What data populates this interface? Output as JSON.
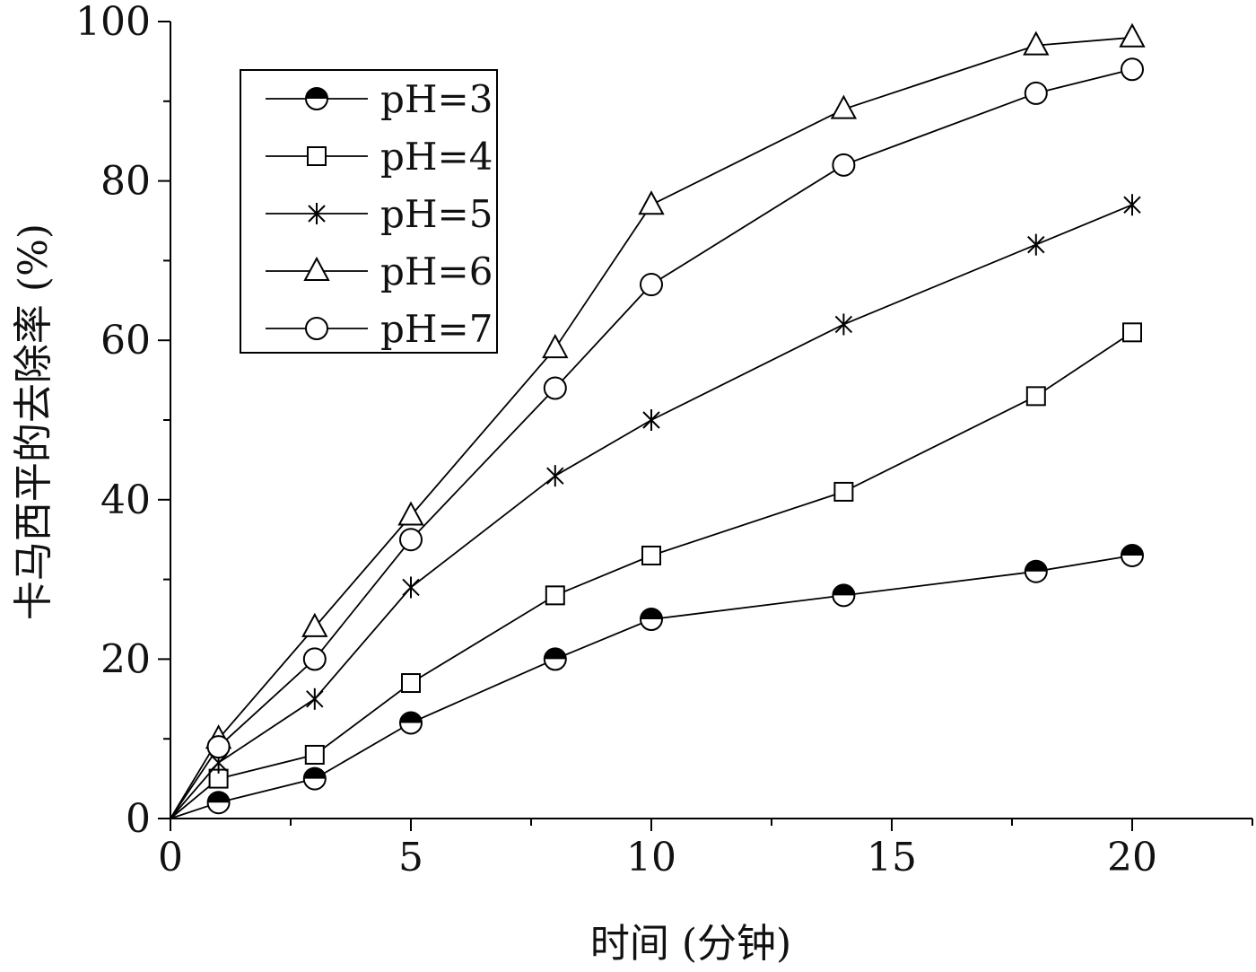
{
  "chart_data": {
    "type": "line",
    "xlabel": "时间 (分钟)",
    "ylabel": "卡马西平的去除率 (%)",
    "xlim": [
      0,
      22.5
    ],
    "ylim": [
      0,
      100
    ],
    "x_ticks": [
      "0",
      "5",
      "10",
      "15",
      "20"
    ],
    "y_ticks": [
      "0",
      "20",
      "40",
      "60",
      "80",
      "100"
    ],
    "legend_position": "top-left",
    "grid": false,
    "x": [
      0,
      1,
      3,
      5,
      8,
      10,
      14,
      18,
      20
    ],
    "series": [
      {
        "name": "pH=3",
        "marker": "half-filled-circle",
        "values": [
          0,
          2,
          5,
          12,
          20,
          25,
          28,
          31,
          33
        ]
      },
      {
        "name": "pH=4",
        "marker": "square",
        "values": [
          0,
          5,
          8,
          17,
          28,
          33,
          41,
          53,
          61
        ]
      },
      {
        "name": "pH=5",
        "marker": "asterisk",
        "values": [
          0,
          7,
          15,
          29,
          43,
          50,
          62,
          72,
          77
        ]
      },
      {
        "name": "pH=6",
        "marker": "triangle",
        "values": [
          0,
          10,
          24,
          38,
          59,
          77,
          89,
          97,
          98
        ]
      },
      {
        "name": "pH=7",
        "marker": "circle",
        "values": [
          0,
          9,
          20,
          35,
          54,
          67,
          82,
          91,
          94
        ]
      }
    ]
  }
}
